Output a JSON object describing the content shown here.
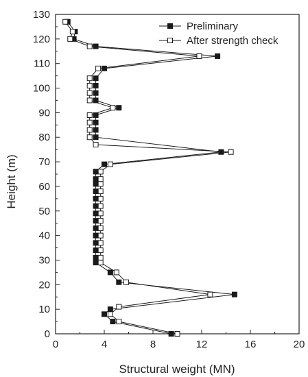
{
  "chart_data": {
    "type": "line",
    "title": "",
    "xlabel": "Structural weight (MN)",
    "ylabel": "Height (m)",
    "xlim": [
      0,
      20
    ],
    "ylim": [
      0,
      130
    ],
    "x_ticks": [
      "0",
      "4",
      "8",
      "12",
      "16",
      "20"
    ],
    "y_ticks": [
      "0",
      "10",
      "20",
      "30",
      "40",
      "50",
      "60",
      "70",
      "80",
      "90",
      "100",
      "110",
      "120",
      "130"
    ],
    "grid": false,
    "legend_position": "top-right",
    "series": [
      {
        "name": "Preliminary",
        "marker": "filled-square",
        "color": "#1a1a1a",
        "points": [
          [
            9.5,
            0
          ],
          [
            4.7,
            5
          ],
          [
            4.0,
            8
          ],
          [
            4.5,
            10
          ],
          [
            14.7,
            16
          ],
          [
            5.2,
            21
          ],
          [
            4.5,
            25
          ],
          [
            3.3,
            29
          ],
          [
            3.3,
            31
          ],
          [
            3.3,
            34
          ],
          [
            3.3,
            37
          ],
          [
            3.3,
            40
          ],
          [
            3.3,
            43
          ],
          [
            3.3,
            46
          ],
          [
            3.3,
            49
          ],
          [
            3.3,
            52
          ],
          [
            3.3,
            55
          ],
          [
            3.3,
            58
          ],
          [
            3.3,
            61
          ],
          [
            3.3,
            63
          ],
          [
            3.3,
            66
          ],
          [
            4.0,
            69
          ],
          [
            13.6,
            74
          ],
          [
            3.3,
            80
          ],
          [
            3.3,
            83
          ],
          [
            3.3,
            86
          ],
          [
            3.3,
            89
          ],
          [
            5.2,
            92
          ],
          [
            3.3,
            95
          ],
          [
            3.3,
            98
          ],
          [
            3.3,
            101
          ],
          [
            3.3,
            104
          ],
          [
            4.0,
            108
          ],
          [
            13.3,
            113
          ],
          [
            3.3,
            117
          ],
          [
            1.5,
            120
          ],
          [
            1.6,
            123
          ],
          [
            1.0,
            127
          ]
        ]
      },
      {
        "name": "After strength check",
        "marker": "open-square",
        "color": "#1a1a1a",
        "points": [
          [
            10.0,
            0
          ],
          [
            5.2,
            5
          ],
          [
            4.5,
            8
          ],
          [
            5.2,
            11
          ],
          [
            12.7,
            16
          ],
          [
            5.8,
            21
          ],
          [
            5.0,
            25
          ],
          [
            3.7,
            29
          ],
          [
            3.7,
            31
          ],
          [
            3.7,
            34
          ],
          [
            3.7,
            37
          ],
          [
            3.7,
            40
          ],
          [
            3.7,
            43
          ],
          [
            3.7,
            46
          ],
          [
            3.7,
            49
          ],
          [
            3.7,
            52
          ],
          [
            3.7,
            55
          ],
          [
            3.7,
            58
          ],
          [
            3.7,
            61
          ],
          [
            3.7,
            63
          ],
          [
            3.7,
            66
          ],
          [
            4.5,
            69
          ],
          [
            14.4,
            74
          ],
          [
            3.3,
            77
          ],
          [
            2.8,
            80
          ],
          [
            2.8,
            83
          ],
          [
            2.8,
            86
          ],
          [
            2.8,
            89
          ],
          [
            4.7,
            92
          ],
          [
            2.8,
            95
          ],
          [
            2.8,
            98
          ],
          [
            2.8,
            101
          ],
          [
            2.8,
            104
          ],
          [
            3.5,
            108
          ],
          [
            11.8,
            113
          ],
          [
            2.8,
            117
          ],
          [
            1.2,
            120
          ],
          [
            1.4,
            123
          ],
          [
            0.8,
            127
          ]
        ]
      }
    ]
  }
}
